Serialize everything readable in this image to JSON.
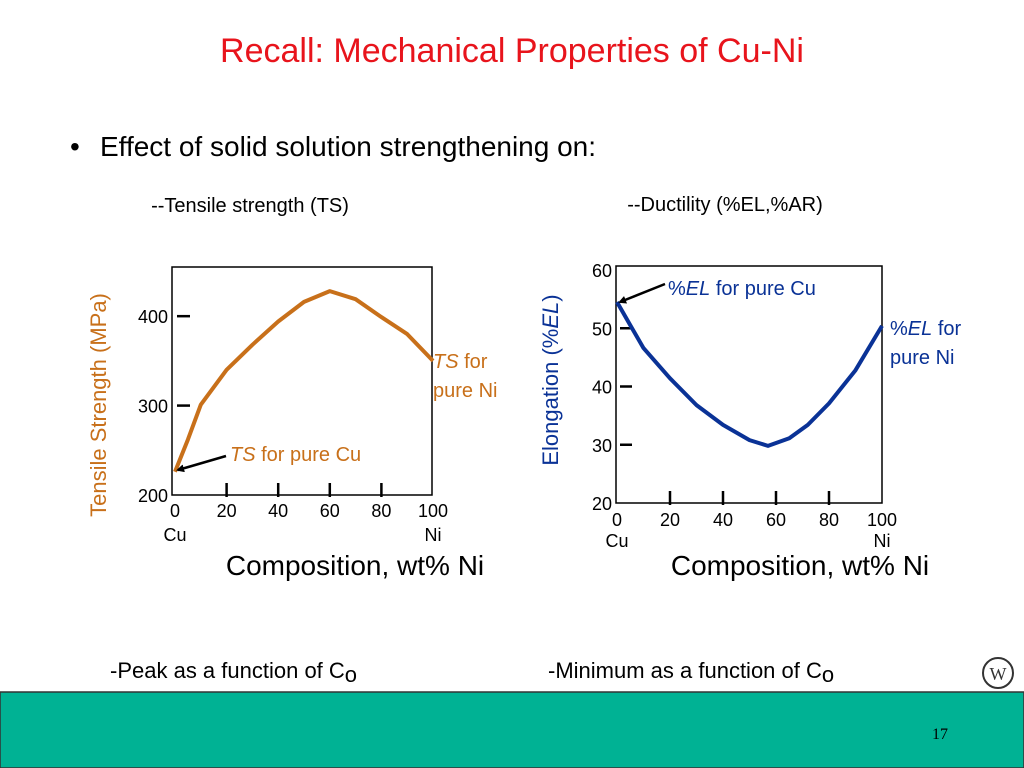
{
  "title": "Recall: Mechanical Properties of Cu-Ni",
  "bullet": "Effect of solid solution strengthening on:",
  "notes": [
    {
      "text": "-Peak as a function of C",
      "subscript": "o"
    },
    {
      "text": "-Minimum as a function of C",
      "subscript": "o"
    }
  ],
  "page_number": "17",
  "chart_data": [
    {
      "type": "line",
      "subtitle": "--Tensile strength (TS)",
      "x_label": "Composition, wt% Ni",
      "y_label": [
        {
          "text": "Tensile Strength (MPa)"
        }
      ],
      "x_end_labels": [
        "Cu",
        "Ni"
      ],
      "x": [
        0,
        5,
        10,
        20,
        30,
        40,
        50,
        60,
        70,
        80,
        90,
        100
      ],
      "values": [
        226,
        262,
        301,
        340,
        368,
        394,
        416,
        428,
        419,
        399,
        380,
        350
      ],
      "color": "#c8701a",
      "xlim": [
        0,
        100
      ],
      "xticks": [
        0,
        20,
        40,
        60,
        80,
        100
      ],
      "ylim": [
        200,
        455
      ],
      "yticks": [
        200,
        300,
        400
      ],
      "annotations": [
        [
          [
            {
              "text": "TS",
              "italic": true
            },
            {
              "text": " for pure Cu"
            }
          ]
        ],
        [
          [
            {
              "text": "TS",
              "italic": true
            },
            {
              "text": " for"
            }
          ],
          [
            {
              "text": "pure Ni"
            }
          ]
        ]
      ]
    },
    {
      "type": "line",
      "subtitle": "--Ductility (%EL,%AR)",
      "x_label": "Composition, wt% Ni",
      "y_label": [
        {
          "text": "Elongation (%"
        },
        {
          "text": "EL",
          "italic": true
        },
        {
          "text": ")"
        }
      ],
      "x_end_labels": [
        "Cu",
        "Ni"
      ],
      "x": [
        0,
        5,
        10,
        20,
        30,
        40,
        50,
        57,
        65,
        72,
        80,
        90,
        100
      ],
      "values": [
        54.5,
        50.5,
        46.6,
        41.4,
        36.8,
        33.4,
        30.8,
        29.8,
        31.1,
        33.4,
        37.1,
        42.8,
        50.4
      ],
      "color": "#0a3296",
      "xlim": [
        0,
        100
      ],
      "xticks": [
        0,
        20,
        40,
        60,
        80,
        100
      ],
      "ylim": [
        20,
        60
      ],
      "yticks": [
        20,
        30,
        40,
        50,
        60
      ],
      "annotations": [
        [
          [
            {
              "text": "%"
            },
            {
              "text": "EL",
              "italic": true
            },
            {
              "text": " for pure Cu"
            }
          ]
        ],
        [
          [
            {
              "text": "%"
            },
            {
              "text": "EL",
              "italic": true
            },
            {
              "text": " for"
            }
          ],
          [
            {
              "text": "pure Ni"
            }
          ]
        ]
      ]
    }
  ]
}
